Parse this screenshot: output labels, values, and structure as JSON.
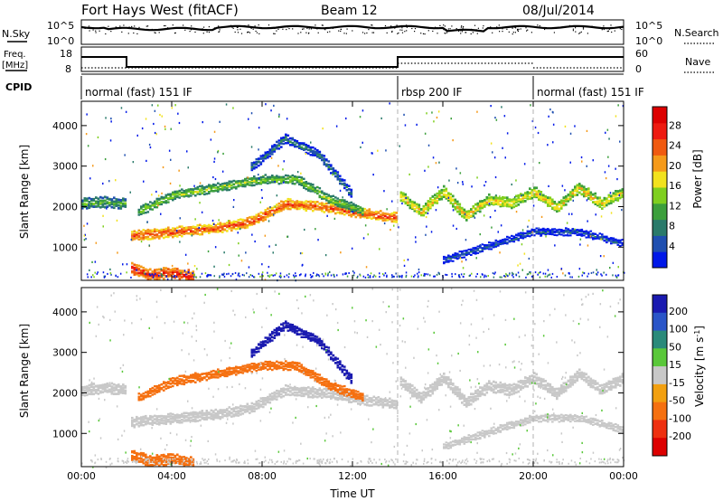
{
  "header": {
    "title": "Fort Hays West (fitACF)",
    "beam": "Beam 12",
    "date": "08/Jul/2014"
  },
  "noise_panel": {
    "left_label": "N.Sky",
    "right_label": "N.Search",
    "left_ticks": [
      "10^5",
      "10^0"
    ],
    "right_ticks": [
      "10^5",
      "10^0"
    ]
  },
  "freq_panel": {
    "left_label_1": "Freq.",
    "left_label_2": "[MHz]",
    "right_label": "Nave",
    "left_ticks": [
      "18",
      "8"
    ],
    "right_ticks": [
      "60",
      "0"
    ]
  },
  "cpid_panel": {
    "label": "CPID",
    "modes": [
      {
        "label": "normal (fast) 151 IF",
        "start_hour": 0,
        "end_hour": 14
      },
      {
        "label": "rbsp 200 IF",
        "start_hour": 14,
        "end_hour": 20
      },
      {
        "label": "normal (fast) 151 IF",
        "start_hour": 20,
        "end_hour": 24
      }
    ]
  },
  "chart_data": [
    {
      "type": "heatmap",
      "name": "power",
      "ylabel": "Slant Range [km]",
      "yticks": [
        "1000",
        "2000",
        "3000",
        "4000"
      ],
      "ylim": [
        180,
        4600
      ],
      "xlim": [
        0,
        24
      ],
      "colorbar": {
        "label": "Power [dB]",
        "ticks": [
          "4",
          "8",
          "12",
          "16",
          "20",
          "24",
          "28"
        ],
        "colors": [
          "#0018e8",
          "#1f4fb0",
          "#2a7a6a",
          "#3c9f3c",
          "#7fcf1f",
          "#f2e21e",
          "#f59a1a",
          "#f05a10",
          "#ee1a10",
          "#dd0000"
        ]
      },
      "bands": [
        {
          "times": [
            0,
            1,
            2
          ],
          "ranges": [
            2100,
            2150,
            2100
          ],
          "width": 200,
          "level": 12
        },
        {
          "times": [
            2.2,
            4,
            6,
            7.5,
            9,
            11,
            12.5,
            14
          ],
          "ranges": [
            1300,
            1400,
            1500,
            1650,
            2100,
            2000,
            1850,
            1750
          ],
          "width": 180,
          "level": 24
        },
        {
          "times": [
            2.5,
            4,
            6,
            8,
            9.5,
            11,
            12.5
          ],
          "ranges": [
            1900,
            2300,
            2500,
            2700,
            2700,
            2200,
            1900
          ],
          "width": 160,
          "level": 14
        },
        {
          "times": [
            7.5,
            9,
            10.5,
            12
          ],
          "ranges": [
            3000,
            3700,
            3300,
            2300
          ],
          "width": 160,
          "level": 8
        },
        {
          "times": [
            14.1,
            15,
            16,
            17,
            18,
            19,
            20,
            21,
            22,
            23,
            24
          ],
          "ranges": [
            2300,
            1900,
            2400,
            1800,
            2200,
            2100,
            2400,
            2000,
            2500,
            2100,
            2400
          ],
          "width": 200,
          "level": 18
        },
        {
          "times": [
            16,
            18,
            20,
            22,
            24
          ],
          "ranges": [
            700,
            1050,
            1400,
            1400,
            1100
          ],
          "width": 120,
          "level": 6
        },
        {
          "times": [
            2.2,
            3,
            4,
            5
          ],
          "ranges": [
            500,
            350,
            400,
            300
          ],
          "width": 200,
          "level": 26
        }
      ]
    },
    {
      "type": "heatmap",
      "name": "velocity",
      "ylabel": "Slant Range [km]",
      "xlabel": "Time UT",
      "yticks": [
        "1000",
        "2000",
        "3000",
        "4000"
      ],
      "xticks": [
        "00:00",
        "04:00",
        "08:00",
        "12:00",
        "16:00",
        "20:00",
        "00:00"
      ],
      "ylim": [
        180,
        4600
      ],
      "xlim": [
        0,
        24
      ],
      "colorbar": {
        "label": "Velocity [m s^-1]",
        "ticks": [
          "200",
          "100",
          "50",
          "15",
          "-15",
          "-50",
          "-100",
          "-200"
        ],
        "colors": [
          "#1a1ab0",
          "#2a55c8",
          "#2a8a7a",
          "#5ac83a",
          "#c8c8c8",
          "#f2a010",
          "#f57010",
          "#ee3010",
          "#dd0000"
        ]
      },
      "bands": [
        {
          "times": [
            0,
            1,
            2
          ],
          "ranges": [
            2100,
            2150,
            2100
          ],
          "width": 200,
          "level": 0
        },
        {
          "times": [
            2.2,
            4,
            6,
            7.5,
            9,
            11,
            12.5,
            14
          ],
          "ranges": [
            1300,
            1400,
            1500,
            1650,
            2100,
            2000,
            1850,
            1750
          ],
          "width": 180,
          "level": 0
        },
        {
          "times": [
            2.5,
            4,
            6,
            8,
            9.5,
            11,
            12.5
          ],
          "ranges": [
            1900,
            2300,
            2500,
            2700,
            2700,
            2200,
            1900
          ],
          "width": 160,
          "level": -40
        },
        {
          "times": [
            7.5,
            9,
            10.5,
            12
          ],
          "ranges": [
            3000,
            3700,
            3300,
            2300
          ],
          "width": 160,
          "level": 180
        },
        {
          "times": [
            14.1,
            15,
            16,
            17,
            18,
            19,
            20,
            21,
            22,
            23,
            24
          ],
          "ranges": [
            2300,
            1900,
            2400,
            1800,
            2200,
            2100,
            2400,
            2000,
            2500,
            2100,
            2400
          ],
          "width": 200,
          "level": 0
        },
        {
          "times": [
            16,
            18,
            20,
            22,
            24
          ],
          "ranges": [
            700,
            1050,
            1400,
            1400,
            1100
          ],
          "width": 120,
          "level": 0
        },
        {
          "times": [
            2.2,
            3,
            4,
            5
          ],
          "ranges": [
            500,
            350,
            400,
            300
          ],
          "width": 200,
          "level": -40
        }
      ]
    }
  ]
}
